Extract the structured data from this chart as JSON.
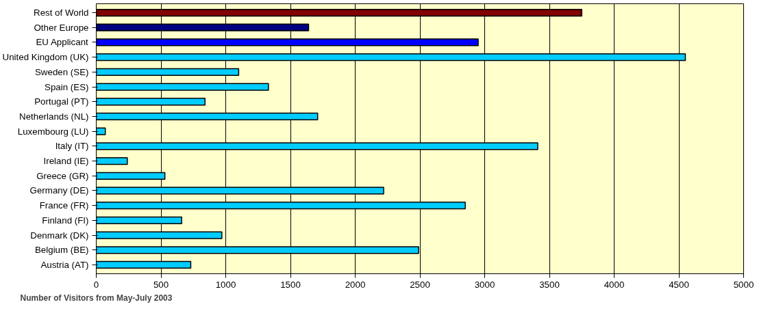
{
  "chart_data": {
    "type": "bar",
    "orientation": "horizontal",
    "xlabel": "Number of Visitors from May-July 2003",
    "categories": [
      "Rest of World",
      "Other Europe",
      "EU Applicant",
      "United Kingdom (UK)",
      "Sweden (SE)",
      "Spain (ES)",
      "Portugal (PT)",
      "Netherlands (NL)",
      "Luxembourg (LU)",
      "Italy (IT)",
      "Ireland (IE)",
      "Greece (GR)",
      "Germany (DE)",
      "France (FR)",
      "Finland (FI)",
      "Denmark (DK)",
      "Belgium (BE)",
      "Austria (AT)"
    ],
    "values": [
      3750,
      1640,
      2950,
      4550,
      1100,
      1330,
      840,
      1710,
      70,
      3410,
      240,
      530,
      2220,
      2850,
      660,
      970,
      2490,
      730
    ],
    "colors": [
      "#800000",
      "#000080",
      "#0000ff",
      "#00ccff",
      "#00ccff",
      "#00ccff",
      "#00ccff",
      "#00ccff",
      "#00ccff",
      "#00ccff",
      "#00ccff",
      "#00ccff",
      "#00ccff",
      "#00ccff",
      "#00ccff",
      "#00ccff",
      "#00ccff",
      "#00ccff"
    ],
    "xlim": [
      0,
      5000
    ],
    "xticks": [
      0,
      500,
      1000,
      1500,
      2000,
      2500,
      3000,
      3500,
      4000,
      4500,
      5000
    ],
    "grid": "x"
  }
}
